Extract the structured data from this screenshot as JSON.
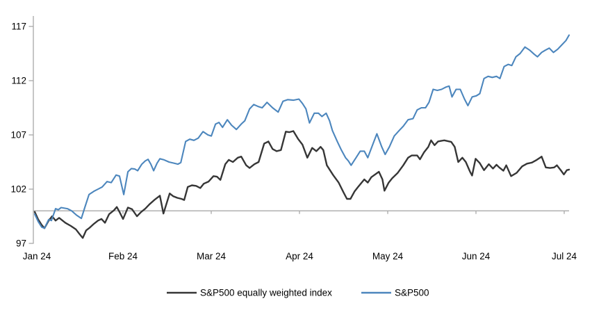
{
  "chart_data": {
    "type": "line",
    "title": "",
    "x_axis": {
      "tick_labels": [
        "Jan 24",
        "Feb 24",
        "Mar 24",
        "Apr 24",
        "May 24",
        "Jun 24",
        "Jul 24"
      ],
      "unit_note": "months, Jan 2024 - Jul 2024"
    },
    "y_axis": {
      "ticks": [
        97,
        102,
        107,
        112,
        117
      ],
      "range_min": 97,
      "range_max": 117.8
    },
    "baseline_value": 100,
    "grid": "off",
    "legend_position": "bottom",
    "colors": {
      "equal_weight_line": "#363636",
      "sp500_line": "#4c86bd",
      "axis_gray": "#a8a8a8",
      "text": "#000000"
    },
    "series": [
      {
        "name": "S&P500 equally weighted index",
        "color_key": "equal_weight_line",
        "points": [
          [
            0.0,
            99.9
          ],
          [
            0.039,
            99.2
          ],
          [
            0.079,
            98.7
          ],
          [
            0.11,
            98.4
          ],
          [
            0.158,
            99.1
          ],
          [
            0.197,
            99.5
          ],
          [
            0.236,
            99.1
          ],
          [
            0.276,
            99.35
          ],
          [
            0.347,
            98.9
          ],
          [
            0.41,
            98.6
          ],
          [
            0.465,
            98.3
          ],
          [
            0.504,
            97.9
          ],
          [
            0.544,
            97.5
          ],
          [
            0.583,
            98.2
          ],
          [
            0.623,
            98.45
          ],
          [
            0.67,
            98.8
          ],
          [
            0.717,
            99.1
          ],
          [
            0.757,
            99.25
          ],
          [
            0.796,
            98.9
          ],
          [
            0.843,
            99.7
          ],
          [
            0.898,
            100.05
          ],
          [
            0.93,
            100.35
          ],
          [
            0.961,
            99.9
          ],
          [
            1.001,
            99.25
          ],
          [
            1.056,
            100.3
          ],
          [
            1.103,
            100.15
          ],
          [
            1.158,
            99.5
          ],
          [
            1.206,
            99.9
          ],
          [
            1.253,
            100.2
          ],
          [
            1.3,
            100.6
          ],
          [
            1.355,
            101.0
          ],
          [
            1.418,
            101.4
          ],
          [
            1.458,
            99.75
          ],
          [
            1.529,
            101.6
          ],
          [
            1.568,
            101.35
          ],
          [
            1.615,
            101.2
          ],
          [
            1.663,
            101.1
          ],
          [
            1.694,
            101.0
          ],
          [
            1.734,
            102.2
          ],
          [
            1.781,
            102.35
          ],
          [
            1.828,
            102.3
          ],
          [
            1.876,
            102.1
          ],
          [
            1.915,
            102.5
          ],
          [
            1.97,
            102.7
          ],
          [
            2.025,
            103.2
          ],
          [
            2.065,
            103.15
          ],
          [
            2.104,
            102.85
          ],
          [
            2.159,
            104.3
          ],
          [
            2.199,
            104.7
          ],
          [
            2.246,
            104.5
          ],
          [
            2.301,
            104.9
          ],
          [
            2.34,
            105.0
          ],
          [
            2.396,
            104.2
          ],
          [
            2.435,
            103.95
          ],
          [
            2.49,
            104.3
          ],
          [
            2.537,
            104.5
          ],
          [
            2.6,
            106.2
          ],
          [
            2.648,
            106.4
          ],
          [
            2.695,
            105.7
          ],
          [
            2.742,
            105.5
          ],
          [
            2.79,
            105.6
          ],
          [
            2.845,
            107.3
          ],
          [
            2.884,
            107.25
          ],
          [
            2.931,
            107.35
          ],
          [
            2.987,
            106.6
          ],
          [
            3.034,
            106.1
          ],
          [
            3.089,
            104.9
          ],
          [
            3.144,
            105.8
          ],
          [
            3.191,
            105.5
          ],
          [
            3.239,
            105.9
          ],
          [
            3.27,
            105.6
          ],
          [
            3.31,
            104.2
          ],
          [
            3.381,
            103.3
          ],
          [
            3.444,
            102.6
          ],
          [
            3.499,
            101.7
          ],
          [
            3.538,
            101.1
          ],
          [
            3.578,
            101.1
          ],
          [
            3.625,
            101.8
          ],
          [
            3.664,
            102.2
          ],
          [
            3.735,
            102.9
          ],
          [
            3.774,
            102.6
          ],
          [
            3.814,
            103.1
          ],
          [
            3.9,
            103.6
          ],
          [
            3.94,
            102.9
          ],
          [
            3.963,
            101.85
          ],
          [
            4.011,
            102.6
          ],
          [
            4.05,
            103.0
          ],
          [
            4.113,
            103.5
          ],
          [
            4.176,
            104.2
          ],
          [
            4.231,
            104.9
          ],
          [
            4.271,
            105.1
          ],
          [
            4.334,
            105.1
          ],
          [
            4.365,
            104.75
          ],
          [
            4.412,
            105.4
          ],
          [
            4.46,
            105.9
          ],
          [
            4.491,
            106.5
          ],
          [
            4.531,
            106.05
          ],
          [
            4.57,
            106.4
          ],
          [
            4.641,
            106.5
          ],
          [
            4.72,
            106.35
          ],
          [
            4.759,
            105.9
          ],
          [
            4.799,
            104.5
          ],
          [
            4.846,
            104.9
          ],
          [
            4.885,
            104.5
          ],
          [
            4.933,
            103.6
          ],
          [
            4.956,
            103.25
          ],
          [
            4.996,
            104.8
          ],
          [
            5.043,
            104.4
          ],
          [
            5.091,
            103.75
          ],
          [
            5.146,
            104.3
          ],
          [
            5.193,
            103.9
          ],
          [
            5.232,
            104.25
          ],
          [
            5.264,
            104.0
          ],
          [
            5.311,
            103.7
          ],
          [
            5.343,
            104.2
          ],
          [
            5.398,
            103.2
          ],
          [
            5.461,
            103.5
          ],
          [
            5.524,
            104.1
          ],
          [
            5.579,
            104.35
          ],
          [
            5.634,
            104.45
          ],
          [
            5.689,
            104.7
          ],
          [
            5.744,
            105.0
          ],
          [
            5.791,
            104.0
          ],
          [
            5.839,
            103.95
          ],
          [
            5.886,
            104.0
          ],
          [
            5.917,
            104.2
          ],
          [
            5.965,
            103.7
          ],
          [
            5.996,
            103.35
          ],
          [
            6.03,
            103.75
          ],
          [
            6.055,
            103.8
          ]
        ]
      },
      {
        "name": "S&P500",
        "color_key": "sp500_line",
        "points": [
          [
            0.0,
            99.7
          ],
          [
            0.04,
            99.0
          ],
          [
            0.079,
            98.5
          ],
          [
            0.11,
            98.4
          ],
          [
            0.158,
            99.2
          ],
          [
            0.189,
            99.1
          ],
          [
            0.236,
            100.2
          ],
          [
            0.268,
            100.1
          ],
          [
            0.299,
            100.3
          ],
          [
            0.37,
            100.2
          ],
          [
            0.418,
            100.0
          ],
          [
            0.473,
            99.6
          ],
          [
            0.528,
            99.3
          ],
          [
            0.567,
            100.3
          ],
          [
            0.615,
            101.5
          ],
          [
            0.67,
            101.8
          ],
          [
            0.717,
            102.0
          ],
          [
            0.764,
            102.2
          ],
          [
            0.82,
            102.7
          ],
          [
            0.867,
            102.6
          ],
          [
            0.922,
            103.3
          ],
          [
            0.961,
            103.2
          ],
          [
            1.009,
            101.5
          ],
          [
            1.056,
            103.6
          ],
          [
            1.095,
            103.9
          ],
          [
            1.135,
            103.85
          ],
          [
            1.166,
            103.7
          ],
          [
            1.213,
            104.3
          ],
          [
            1.253,
            104.6
          ],
          [
            1.284,
            104.75
          ],
          [
            1.316,
            104.3
          ],
          [
            1.347,
            103.7
          ],
          [
            1.387,
            104.4
          ],
          [
            1.418,
            104.8
          ],
          [
            1.466,
            104.7
          ],
          [
            1.521,
            104.5
          ],
          [
            1.576,
            104.4
          ],
          [
            1.623,
            104.3
          ],
          [
            1.655,
            104.45
          ],
          [
            1.71,
            106.4
          ],
          [
            1.757,
            106.6
          ],
          [
            1.804,
            106.5
          ],
          [
            1.852,
            106.7
          ],
          [
            1.907,
            107.3
          ],
          [
            1.962,
            107.0
          ],
          [
            2.001,
            106.9
          ],
          [
            2.049,
            108.0
          ],
          [
            2.088,
            108.15
          ],
          [
            2.128,
            107.7
          ],
          [
            2.183,
            108.4
          ],
          [
            2.23,
            107.9
          ],
          [
            2.285,
            107.5
          ],
          [
            2.34,
            108.0
          ],
          [
            2.38,
            108.3
          ],
          [
            2.435,
            109.4
          ],
          [
            2.482,
            109.8
          ],
          [
            2.537,
            109.6
          ],
          [
            2.577,
            109.5
          ],
          [
            2.632,
            110.0
          ],
          [
            2.695,
            109.5
          ],
          [
            2.758,
            109.1
          ],
          [
            2.813,
            110.1
          ],
          [
            2.868,
            110.25
          ],
          [
            2.931,
            110.2
          ],
          [
            2.994,
            110.3
          ],
          [
            3.034,
            109.9
          ],
          [
            3.073,
            109.4
          ],
          [
            3.113,
            108.1
          ],
          [
            3.168,
            109.0
          ],
          [
            3.215,
            109.0
          ],
          [
            3.254,
            108.7
          ],
          [
            3.302,
            109.0
          ],
          [
            3.341,
            108.3
          ],
          [
            3.373,
            107.4
          ],
          [
            3.428,
            106.4
          ],
          [
            3.475,
            105.6
          ],
          [
            3.522,
            104.9
          ],
          [
            3.554,
            104.6
          ],
          [
            3.585,
            104.2
          ],
          [
            3.641,
            104.9
          ],
          [
            3.688,
            105.5
          ],
          [
            3.735,
            105.5
          ],
          [
            3.774,
            104.9
          ],
          [
            3.83,
            106.1
          ],
          [
            3.877,
            107.1
          ],
          [
            3.932,
            105.9
          ],
          [
            3.971,
            105.2
          ],
          [
            4.019,
            105.9
          ],
          [
            4.074,
            106.9
          ],
          [
            4.129,
            107.4
          ],
          [
            4.176,
            107.8
          ],
          [
            4.231,
            108.4
          ],
          [
            4.287,
            108.5
          ],
          [
            4.334,
            109.3
          ],
          [
            4.381,
            109.5
          ],
          [
            4.428,
            109.5
          ],
          [
            4.468,
            110.0
          ],
          [
            4.515,
            111.2
          ],
          [
            4.562,
            111.1
          ],
          [
            4.61,
            111.2
          ],
          [
            4.657,
            111.4
          ],
          [
            4.696,
            111.5
          ],
          [
            4.728,
            110.5
          ],
          [
            4.775,
            111.2
          ],
          [
            4.822,
            111.2
          ],
          [
            4.87,
            110.3
          ],
          [
            4.909,
            109.7
          ],
          [
            4.957,
            110.5
          ],
          [
            5.004,
            110.6
          ],
          [
            5.043,
            110.8
          ],
          [
            5.091,
            112.2
          ],
          [
            5.138,
            112.4
          ],
          [
            5.185,
            112.3
          ],
          [
            5.232,
            112.4
          ],
          [
            5.272,
            112.2
          ],
          [
            5.319,
            113.3
          ],
          [
            5.366,
            113.5
          ],
          [
            5.406,
            113.4
          ],
          [
            5.453,
            114.2
          ],
          [
            5.5,
            114.5
          ],
          [
            5.555,
            115.1
          ],
          [
            5.61,
            114.8
          ],
          [
            5.658,
            114.45
          ],
          [
            5.697,
            114.2
          ],
          [
            5.744,
            114.6
          ],
          [
            5.784,
            114.8
          ],
          [
            5.831,
            115.0
          ],
          [
            5.878,
            114.6
          ],
          [
            5.926,
            114.9
          ],
          [
            5.973,
            115.3
          ],
          [
            6.02,
            115.7
          ],
          [
            6.055,
            116.2
          ]
        ]
      }
    ]
  },
  "legend": {
    "items": [
      {
        "label": "S&P500 equally weighted index",
        "color_key": "equal_weight_line"
      },
      {
        "label": "S&P500",
        "color_key": "sp500_line"
      }
    ]
  }
}
